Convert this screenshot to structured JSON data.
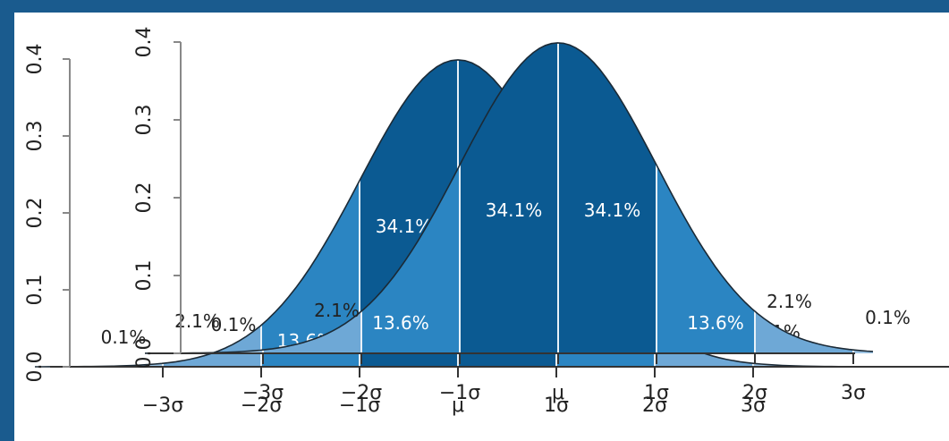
{
  "chart_data": [
    {
      "type": "area",
      "description_role": "back normal curve",
      "mu": 0,
      "sigma": 1,
      "x_ticks": [
        "−3σ",
        "−2σ",
        "−1σ",
        "μ",
        "1σ",
        "2σ",
        "3σ"
      ],
      "y_ticks": [
        "0.0",
        "0.1",
        "0.2",
        "0.3",
        "0.4"
      ],
      "ylim": [
        0,
        0.4
      ],
      "regions": [
        {
          "from": -4,
          "to": -3,
          "label": "0.1%"
        },
        {
          "from": -3,
          "to": -2,
          "label": "2.1%"
        },
        {
          "from": -2,
          "to": -1,
          "label": "13.6%"
        },
        {
          "from": -1,
          "to": 0,
          "label": "34.1%"
        },
        {
          "from": 0,
          "to": 1,
          "label": "34.1%"
        },
        {
          "from": 1,
          "to": 2,
          "label": "13.6%"
        },
        {
          "from": 2,
          "to": 3,
          "label": "2.1%"
        },
        {
          "from": 3,
          "to": 4,
          "label": "0.1%"
        }
      ],
      "colors": {
        "center": "#0b5a92",
        "mid": "#2b85c2",
        "outer": "#6ea8d6",
        "tail": "#9cc4e4"
      }
    },
    {
      "type": "area",
      "description_role": "front normal curve",
      "mu": 0,
      "sigma": 1,
      "x_ticks": [
        "−3σ",
        "−2σ",
        "−1σ",
        "μ",
        "1σ",
        "2σ",
        "3σ"
      ],
      "y_ticks": [
        "0.0",
        "0.1",
        "0.2",
        "0.3",
        "0.4"
      ],
      "ylim": [
        0,
        0.4
      ],
      "regions": [
        {
          "from": -4,
          "to": -3,
          "label": "0.1%"
        },
        {
          "from": -3,
          "to": -2,
          "label": "2.1%"
        },
        {
          "from": -2,
          "to": -1,
          "label": "13.6%"
        },
        {
          "from": -1,
          "to": 0,
          "label": "34.1%"
        },
        {
          "from": 0,
          "to": 1,
          "label": "34.1%"
        },
        {
          "from": 1,
          "to": 2,
          "label": "13.6%"
        },
        {
          "from": 2,
          "to": 3,
          "label": "2.1%"
        },
        {
          "from": 3,
          "to": 4,
          "label": "0.1%"
        }
      ],
      "colors": {
        "center": "#0b5a92",
        "mid": "#2b85c2",
        "outer": "#6ea8d6",
        "tail": "#9cc4e4"
      }
    }
  ]
}
